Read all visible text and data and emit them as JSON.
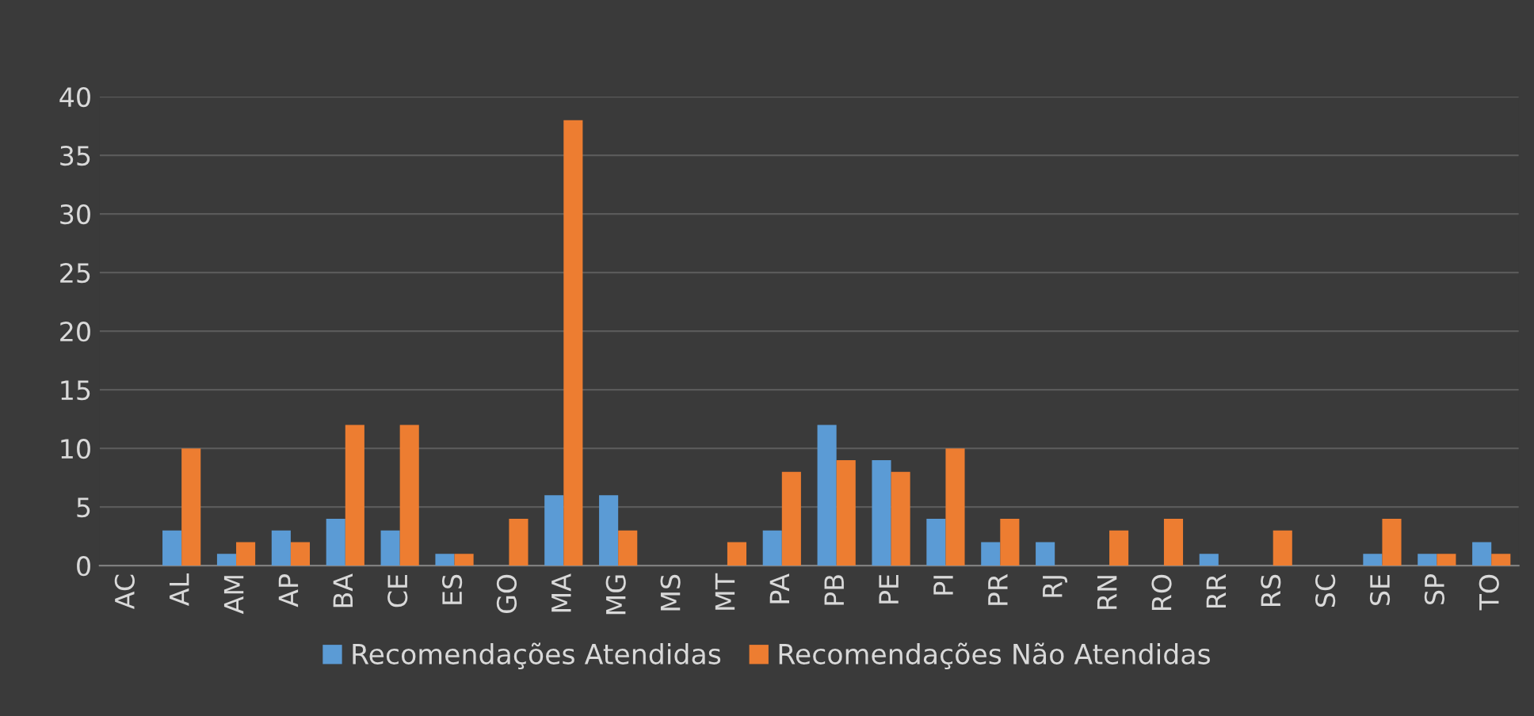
{
  "chart_data": {
    "type": "bar",
    "categories": [
      "AC",
      "AL",
      "AM",
      "AP",
      "BA",
      "CE",
      "ES",
      "GO",
      "MA",
      "MG",
      "MS",
      "MT",
      "PA",
      "PB",
      "PE",
      "PI",
      "PR",
      "RJ",
      "RN",
      "RO",
      "RR",
      "RS",
      "SC",
      "SE",
      "SP",
      "TO"
    ],
    "series": [
      {
        "name": "Recomendações Atendidas",
        "color": "#5b9bd5",
        "values": [
          0,
          3,
          1,
          3,
          4,
          3,
          1,
          0,
          6,
          6,
          0,
          0,
          3,
          12,
          9,
          4,
          2,
          2,
          0,
          0,
          1,
          0,
          0,
          1,
          1,
          2
        ]
      },
      {
        "name": "Recomendações Não Atendidas",
        "color": "#ed7d31",
        "values": [
          0,
          10,
          2,
          2,
          12,
          12,
          1,
          4,
          38,
          3,
          0,
          2,
          8,
          9,
          8,
          10,
          4,
          0,
          3,
          4,
          0,
          3,
          0,
          4,
          1,
          1
        ]
      }
    ],
    "ylim": [
      0,
      40
    ],
    "yticks": [
      0,
      5,
      10,
      15,
      20,
      25,
      30,
      35,
      40
    ],
    "grid": "y",
    "legend": "bottom"
  }
}
